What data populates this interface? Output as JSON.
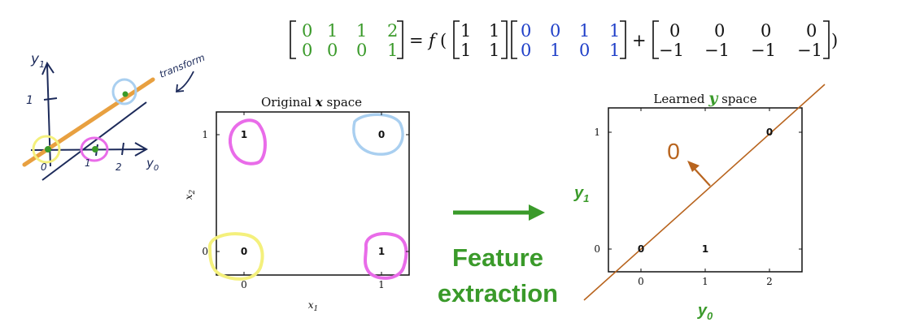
{
  "colors": {
    "green": "#3a9a2a",
    "blue": "#1f3fc8",
    "black": "#111111",
    "orange_line": "#b8641e",
    "sketch_orange": "#e8a040",
    "magenta": "#e96ce9",
    "light_blue": "#a9cff0",
    "yellow": "#f4f07c",
    "navy": "#1c2a5a",
    "arrow_green": "#3a9a2a"
  },
  "equation": {
    "lhs": [
      [
        "0",
        "1",
        "1",
        "2"
      ],
      [
        "0",
        "0",
        "0",
        "1"
      ]
    ],
    "equals": "=",
    "f": "f",
    "open_paren": "(",
    "close_paren": ")",
    "W": [
      [
        "1",
        "1"
      ],
      [
        "1",
        "1"
      ]
    ],
    "X": [
      [
        "0",
        "0",
        "1",
        "1"
      ],
      [
        "0",
        "1",
        "0",
        "1"
      ]
    ],
    "plus": "+",
    "b": [
      [
        "0",
        "0",
        "0",
        "0"
      ],
      [
        "−1",
        "−1",
        "−1",
        "−1"
      ]
    ]
  },
  "sketch": {
    "y1_label": "y",
    "y1_sub": "1",
    "y0_label": "y",
    "y0_sub": "0",
    "tick_y1": "1",
    "tick_x0": "0",
    "tick_x1": "1",
    "tick_x2": "2",
    "transform_note": "transform"
  },
  "left_plot": {
    "title_prefix": "Original ",
    "title_var": "x",
    "title_suffix": " space",
    "xlabel": "x",
    "xlabel_sub": "1",
    "ylabel": "x",
    "ylabel_sub": "2",
    "xticks": [
      "0",
      "1"
    ],
    "yticks": [
      "0",
      "1"
    ],
    "points": [
      {
        "x": 0,
        "y": 0,
        "label": "0"
      },
      {
        "x": 0,
        "y": 1,
        "label": "1"
      },
      {
        "x": 1,
        "y": 0,
        "label": "1"
      },
      {
        "x": 1,
        "y": 1,
        "label": "0"
      }
    ]
  },
  "arrow_caption": {
    "line1": "Feature",
    "line2": "extraction"
  },
  "right_plot": {
    "title_prefix": "Learned ",
    "title_var": "y",
    "title_suffix": " space",
    "xlabel": "y",
    "xlabel_sub": "0",
    "ylabel": "y",
    "ylabel_sub": "1",
    "xticks": [
      "0",
      "1",
      "2"
    ],
    "yticks": [
      "0",
      "1"
    ],
    "points": [
      {
        "x": 0,
        "y": 0,
        "label": "0"
      },
      {
        "x": 1,
        "y": 0,
        "label": "1"
      },
      {
        "x": 2,
        "y": 1,
        "label": "0"
      }
    ],
    "boundary_label": "0"
  }
}
